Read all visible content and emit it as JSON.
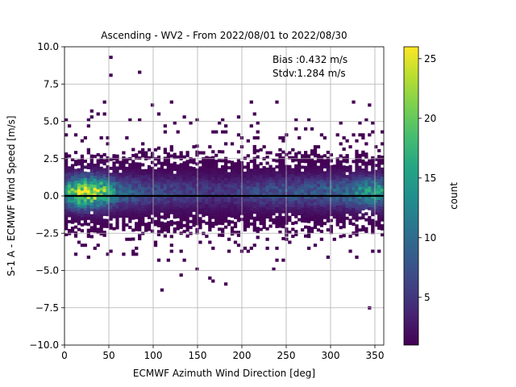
{
  "chart_data": {
    "type": "heatmap",
    "title": "Ascending - WV2 - From 2022/08/01 to 2022/08/30",
    "xlabel": "ECMWF Azimuth Wind Direction [deg]",
    "ylabel": "S-1 A - ECMWF Wind Speed [m/s]",
    "xlim": [
      0,
      360
    ],
    "ylim": [
      -10,
      10
    ],
    "xticks": [
      0,
      50,
      100,
      150,
      200,
      250,
      300,
      350
    ],
    "yticks": [
      -10.0,
      -7.5,
      -5.0,
      -2.5,
      0.0,
      2.5,
      5.0,
      7.5,
      10.0
    ],
    "xtick_labels": [
      "0",
      "50",
      "100",
      "150",
      "200",
      "250",
      "300",
      "350"
    ],
    "ytick_labels": [
      "−10.0",
      "−7.5",
      "−5.0",
      "−2.5",
      "0.0",
      "2.5",
      "5.0",
      "7.5",
      "10.0"
    ],
    "grid": true,
    "bin_width_deg": 3.6,
    "bin_height_ms": 0.2,
    "annotations": [
      "Bias :0.432 m/s",
      "Stdv:1.284 m/s"
    ],
    "reference_line": {
      "y": 0,
      "color": "#000000"
    },
    "colorbar": {
      "label": "count",
      "min": 1,
      "max": 26,
      "ticks": [
        5,
        10,
        15,
        20,
        25
      ],
      "tick_labels": [
        "5",
        "10",
        "15",
        "20",
        "25"
      ],
      "colormap": "viridis"
    },
    "density_profile": {
      "angles": [
        0,
        20,
        30,
        45,
        60,
        90,
        130,
        180,
        230,
        280,
        320,
        340,
        360
      ],
      "peak_counts": [
        14,
        25,
        24,
        19,
        10,
        7,
        6,
        5,
        7,
        8,
        10,
        14,
        14
      ],
      "center_offset": 0.25,
      "core_spread": 0.7,
      "outer_extent": 2.6
    },
    "outliers": [
      {
        "x": 52,
        "y": 9.3
      },
      {
        "x": 52,
        "y": 8.1
      },
      {
        "x": 85,
        "y": 8.3
      },
      {
        "x": 32,
        "y": 5.8
      },
      {
        "x": 45,
        "y": 6.3
      },
      {
        "x": 110,
        "y": -6.4
      },
      {
        "x": 150,
        "y": -5.0
      },
      {
        "x": 132,
        "y": -5.4
      },
      {
        "x": 162,
        "y": -5.5
      },
      {
        "x": 168,
        "y": -5.7
      },
      {
        "x": 180,
        "y": -6.0
      },
      {
        "x": 345,
        "y": -7.6
      },
      {
        "x": 237,
        "y": -4.9
      },
      {
        "x": 245,
        "y": -4.4
      },
      {
        "x": 212,
        "y": 6.2
      },
      {
        "x": 240,
        "y": 6.3
      },
      {
        "x": 100,
        "y": 6.1
      },
      {
        "x": 120,
        "y": 6.3
      },
      {
        "x": 325,
        "y": 6.2
      },
      {
        "x": 343,
        "y": 6.0
      }
    ]
  }
}
